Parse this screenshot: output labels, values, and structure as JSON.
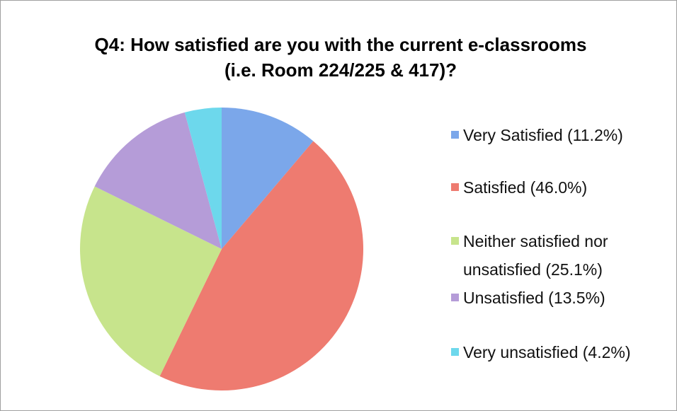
{
  "chart_data": {
    "type": "pie",
    "title": "Q4: How satisfied are you with the current e-classrooms (i.e. Room 224/225 & 417)?",
    "categories": [
      "Very Satisfied (11.2%)",
      "Satisfied (46.0%)",
      "Neither satisfied nor unsatisfied (25.1%)",
      "Unsatisfied (13.5%)",
      "Very unsatisfied (4.2%)"
    ],
    "values": [
      11.2,
      46.0,
      25.1,
      13.5,
      4.2
    ],
    "colors": [
      "#7ba7ea",
      "#ee7b70",
      "#c7e48c",
      "#b59cd8",
      "#6dd8ec"
    ],
    "legend": "right"
  }
}
